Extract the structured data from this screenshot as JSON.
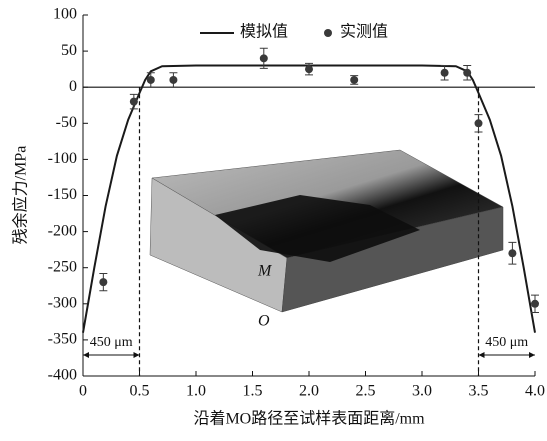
{
  "chart_data": {
    "type": "line",
    "xlabel": "沿着MO路径至试样表面距离/mm",
    "ylabel": "残余应力/MPa",
    "xlim": [
      0,
      4
    ],
    "ylim": [
      -400,
      100
    ],
    "xticks": [
      0,
      0.5,
      {
        "value": 1,
        "label": "1.0"
      },
      1.5,
      {
        "value": 2,
        "label": "2.0"
      },
      2.5,
      {
        "value": 3,
        "label": "3.0"
      },
      3.5,
      {
        "value": 4,
        "label": "4.0"
      }
    ],
    "yticks": [
      -400,
      -350,
      -300,
      -250,
      -200,
      -150,
      -100,
      -50,
      0,
      50,
      100
    ],
    "legend": "top-right",
    "reference_line": 0,
    "series": [
      {
        "name": "模拟值",
        "kind": "line",
        "color": "#1a1a1a",
        "x": [
          0,
          0.1,
          0.2,
          0.3,
          0.4,
          0.5,
          0.55,
          0.6,
          0.7,
          1,
          2,
          3,
          3.3,
          3.4,
          3.45,
          3.5,
          3.6,
          3.7,
          3.8,
          3.9,
          4
        ],
        "values": [
          -340,
          -250,
          -165,
          -95,
          -45,
          -8,
          10,
          22,
          29,
          30,
          30,
          30,
          29,
          22,
          10,
          -8,
          -45,
          -95,
          -165,
          -250,
          -340
        ]
      },
      {
        "name": "实测值",
        "kind": "scatter",
        "color": "#3a3a3a",
        "x": [
          0.18,
          0.45,
          0.6,
          0.8,
          1.6,
          2,
          2.4,
          3.2,
          3.4,
          3.5,
          3.8,
          4
        ],
        "values": [
          -270,
          -20,
          10,
          10,
          40,
          25,
          10,
          20,
          20,
          -50,
          -230,
          -300
        ],
        "errors": [
          12,
          10,
          10,
          10,
          14,
          8,
          6,
          10,
          10,
          12,
          15,
          12
        ]
      }
    ],
    "annotations": [
      {
        "text": "450 μm",
        "x_range": [
          0,
          0.5
        ]
      },
      {
        "text": "450 μm",
        "x_range": [
          3.5,
          4
        ]
      }
    ],
    "dashed_lines": [
      0.5,
      3.5
    ],
    "inset_labels": [
      "M",
      "O"
    ]
  }
}
